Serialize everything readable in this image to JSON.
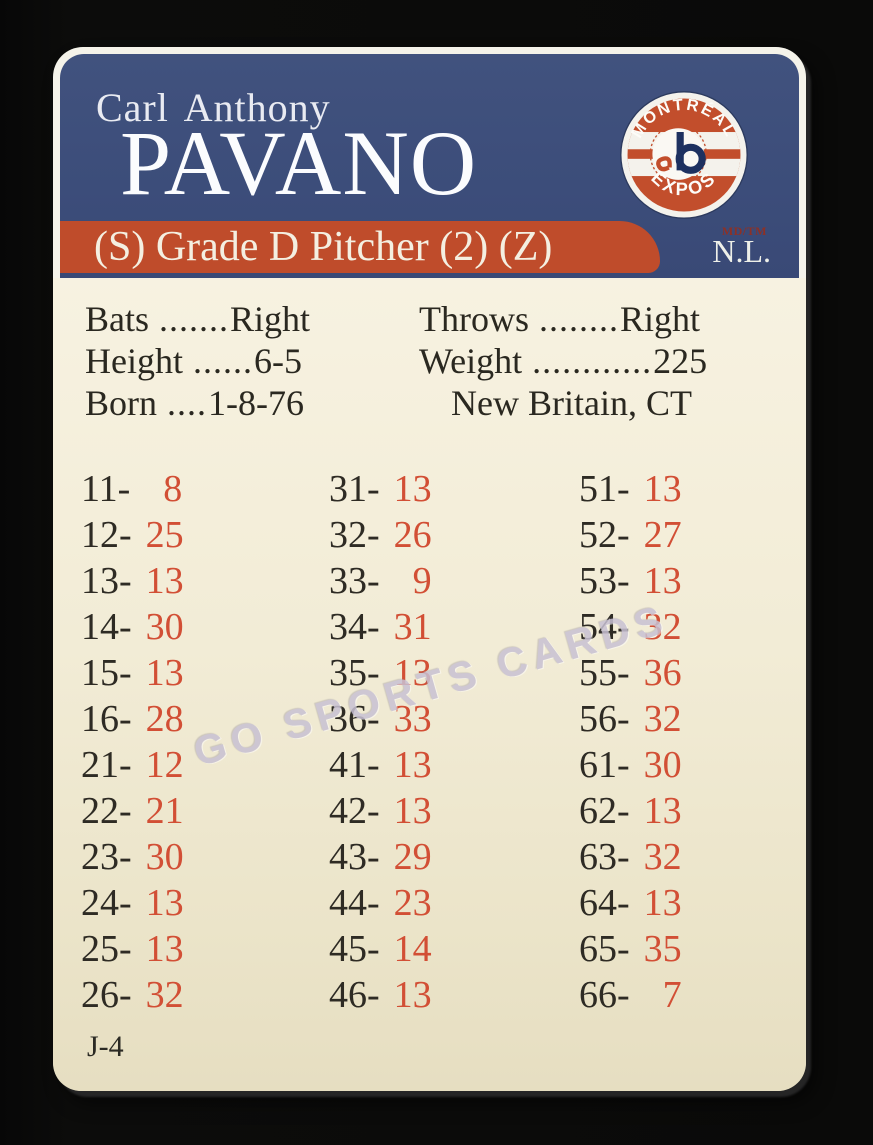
{
  "card": {
    "player": {
      "first_names": "Carl Anthony",
      "surname": "PAVANO"
    },
    "classification": "(S) Grade D Pitcher (2) (Z)",
    "league": "N.L.",
    "team_logo": {
      "top": "MONTRÉAL",
      "bottom": "EXPOS",
      "mark": "MD/TM"
    },
    "bio": {
      "left": [
        {
          "label": "Bats",
          "dots": ".......",
          "value": "Right"
        },
        {
          "label": "Height",
          "dots": "......",
          "value": "6-5"
        },
        {
          "label": "Born",
          "dots": "....",
          "value": "1-8-76"
        }
      ],
      "right": [
        {
          "label": "Throws",
          "dots": "........",
          "value": "Right"
        },
        {
          "label": "Weight",
          "dots": "............",
          "value": "225"
        },
        {
          "label": "",
          "dots": "",
          "value": "New Britain, CT"
        }
      ]
    },
    "dice_table": {
      "separator": "-",
      "columns": [
        [
          {
            "roll": "11",
            "result": "8"
          },
          {
            "roll": "12",
            "result": "25"
          },
          {
            "roll": "13",
            "result": "13"
          },
          {
            "roll": "14",
            "result": "30"
          },
          {
            "roll": "15",
            "result": "13"
          },
          {
            "roll": "16",
            "result": "28"
          },
          {
            "roll": "21",
            "result": "12"
          },
          {
            "roll": "22",
            "result": "21"
          },
          {
            "roll": "23",
            "result": "30"
          },
          {
            "roll": "24",
            "result": "13"
          },
          {
            "roll": "25",
            "result": "13"
          },
          {
            "roll": "26",
            "result": "32"
          }
        ],
        [
          {
            "roll": "31",
            "result": "13"
          },
          {
            "roll": "32",
            "result": "26"
          },
          {
            "roll": "33",
            "result": "9"
          },
          {
            "roll": "34",
            "result": "31"
          },
          {
            "roll": "35",
            "result": "13"
          },
          {
            "roll": "36",
            "result": "33"
          },
          {
            "roll": "41",
            "result": "13"
          },
          {
            "roll": "42",
            "result": "13"
          },
          {
            "roll": "43",
            "result": "29"
          },
          {
            "roll": "44",
            "result": "23"
          },
          {
            "roll": "45",
            "result": "14"
          },
          {
            "roll": "46",
            "result": "13"
          }
        ],
        [
          {
            "roll": "51",
            "result": "13"
          },
          {
            "roll": "52",
            "result": "27"
          },
          {
            "roll": "53",
            "result": "13"
          },
          {
            "roll": "54",
            "result": "32"
          },
          {
            "roll": "55",
            "result": "36"
          },
          {
            "roll": "56",
            "result": "32"
          },
          {
            "roll": "61",
            "result": "30"
          },
          {
            "roll": "62",
            "result": "13"
          },
          {
            "roll": "63",
            "result": "32"
          },
          {
            "roll": "64",
            "result": "13"
          },
          {
            "roll": "65",
            "result": "35"
          },
          {
            "roll": "66",
            "result": "7"
          }
        ]
      ]
    },
    "card_code": "J-4",
    "watermark": "GO SPORTS CARDS",
    "colors": {
      "header_blue": "#3c4d7a",
      "banner_red": "#bf4c2b",
      "cream": "#f2ecd6",
      "result_red": "#d24f35",
      "ink_black": "#2e2b24",
      "watermark_gray": "#c8c1d3"
    }
  }
}
